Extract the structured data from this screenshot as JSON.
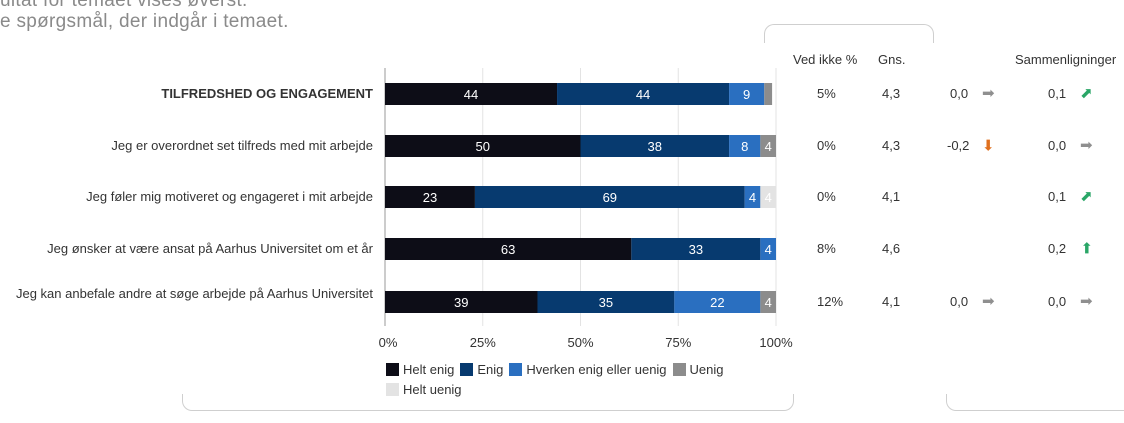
{
  "intro_line1": "ultat for temaet vises øverst.",
  "intro_line2": "e spørgsmål, der indgår i temaet.",
  "columns": {
    "not_know": "Ved ikke %",
    "avg": "Gns.",
    "comparisons": "Sammenligninger"
  },
  "rows": [
    {
      "label": "TILFREDSHED OG ENGAGEMENT",
      "bold": true,
      "not_know": "5%",
      "avg": "4,3",
      "cmp1": "0,0",
      "cmp1_icon": "arrow-right-gray-icon",
      "cmp2": "0,1",
      "cmp2_icon": "arrow-up-right-green-icon"
    },
    {
      "label": "Jeg er overordnet set tilfreds med mit arbejde",
      "bold": false,
      "not_know": "0%",
      "avg": "4,3",
      "cmp1": "-0,2",
      "cmp1_icon": "arrow-down-orange-icon",
      "cmp2": "0,0",
      "cmp2_icon": "arrow-right-gray-icon"
    },
    {
      "label": "Jeg føler mig motiveret og engageret i mit arbejde",
      "bold": false,
      "not_know": "0%",
      "avg": "4,1",
      "cmp1": "",
      "cmp1_icon": "",
      "cmp2": "0,1",
      "cmp2_icon": "arrow-up-right-green-icon"
    },
    {
      "label": "Jeg ønsker at være ansat på Aarhus Universitet om et år",
      "bold": false,
      "not_know": "8%",
      "avg": "4,6",
      "cmp1": "",
      "cmp1_icon": "",
      "cmp2": "0,2",
      "cmp2_icon": "arrow-up-green-icon"
    },
    {
      "label": "Jeg kan anbefale andre at søge arbejde på Aarhus Universitet",
      "bold": false,
      "not_know": "12%",
      "avg": "4,1",
      "cmp1": "0,0",
      "cmp1_icon": "arrow-right-gray-icon",
      "cmp2": "0,0",
      "cmp2_icon": "arrow-right-gray-icon"
    }
  ],
  "chart_data": {
    "type": "bar",
    "orientation": "horizontal",
    "stacked": true,
    "categories": [
      "TILFREDSHED OG ENGAGEMENT",
      "Jeg er overordnet set tilfreds med mit arbejde",
      "Jeg føler mig motiveret og engageret i mit arbejde",
      "Jeg ønsker at være ansat på Aarhus Universitet om et år",
      "Jeg kan anbefale andre at søge arbejde på Aarhus Universitet"
    ],
    "series": [
      {
        "name": "Helt enig",
        "color": "#0d0d17",
        "values": [
          44,
          50,
          23,
          63,
          39
        ]
      },
      {
        "name": "Enig",
        "color": "#073a6f",
        "values": [
          44,
          38,
          69,
          33,
          35
        ]
      },
      {
        "name": "Hverken enig eller uenig",
        "color": "#2a6fc0",
        "values": [
          9,
          8,
          4,
          4,
          22
        ]
      },
      {
        "name": "Uenig",
        "color": "#8c8c8c",
        "values": [
          2,
          4,
          0,
          0,
          4
        ]
      },
      {
        "name": "Helt uenig",
        "color": "#e3e3e3",
        "values": [
          0,
          0,
          4,
          0,
          0
        ]
      }
    ],
    "labels": [
      [
        "44",
        "44",
        "9",
        "",
        ""
      ],
      [
        "50",
        "38",
        "8",
        "4",
        ""
      ],
      [
        "23",
        "69",
        "4",
        "",
        "4"
      ],
      [
        "63",
        "33",
        "4",
        "",
        ""
      ],
      [
        "39",
        "35",
        "22",
        "4",
        ""
      ]
    ],
    "xticks": [
      "0%",
      "25%",
      "50%",
      "75%",
      "100%"
    ],
    "xlim": [
      0,
      100
    ],
    "grid": true,
    "legend_position": "bottom"
  }
}
